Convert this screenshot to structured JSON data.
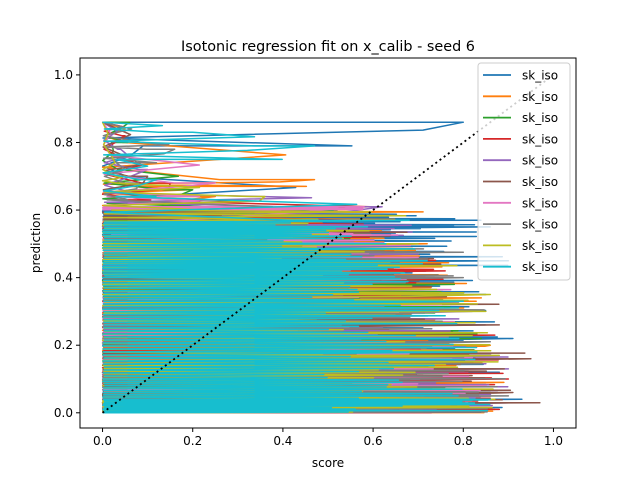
{
  "chart_data": {
    "type": "line",
    "title": "Isotonic regression fit on x_calib - seed 6",
    "xlabel": "score",
    "ylabel": "prediction",
    "xlim": [
      -0.05,
      1.05
    ],
    "ylim": [
      -0.045,
      1.05
    ],
    "xticks": [
      "0.0",
      "0.2",
      "0.4",
      "0.6",
      "0.8",
      "1.0"
    ],
    "yticks": [
      "0.0",
      "0.2",
      "0.4",
      "0.6",
      "0.8",
      "1.0"
    ],
    "grid": false,
    "legend_position": "top-right",
    "reference_line": {
      "x": [
        0,
        1
      ],
      "y": [
        0,
        1
      ],
      "style": "dotted",
      "color": "#000000"
    },
    "series": [
      {
        "name": "sk_iso",
        "color": "#1f77b4",
        "points": [
          [
            0.0,
            0.86
          ],
          [
            0.8,
            0.86
          ],
          [
            0.09,
            0.79
          ],
          [
            0.03,
            0.7
          ],
          [
            0.52,
            0.6
          ],
          [
            0.12,
            0.59
          ],
          [
            0.86,
            0.55
          ],
          [
            0.05,
            0.52
          ],
          [
            0.9,
            0.45
          ],
          [
            0.02,
            0.4
          ],
          [
            0.85,
            0.35
          ],
          [
            0.06,
            0.3
          ],
          [
            0.91,
            0.22
          ],
          [
            0.03,
            0.18
          ],
          [
            0.88,
            0.12
          ],
          [
            0.01,
            0.07
          ],
          [
            0.93,
            0.04
          ],
          [
            0.0,
            0.0
          ]
        ]
      },
      {
        "name": "sk_iso",
        "color": "#ff7f0e",
        "points": [
          [
            0.0,
            0.86
          ],
          [
            0.05,
            0.8
          ],
          [
            0.47,
            0.69
          ],
          [
            0.06,
            0.67
          ],
          [
            0.25,
            0.64
          ],
          [
            0.03,
            0.6
          ],
          [
            0.72,
            0.5
          ],
          [
            0.02,
            0.45
          ],
          [
            0.84,
            0.34
          ],
          [
            0.04,
            0.28
          ],
          [
            0.86,
            0.2
          ],
          [
            0.02,
            0.15
          ],
          [
            0.89,
            0.09
          ],
          [
            0.0,
            0.03
          ],
          [
            0.87,
            0.01
          ],
          [
            0.0,
            0.0
          ]
        ]
      },
      {
        "name": "sk_iso",
        "color": "#2ca02c",
        "points": [
          [
            0.0,
            0.86
          ],
          [
            0.06,
            0.86
          ],
          [
            0.02,
            0.8
          ],
          [
            0.04,
            0.72
          ],
          [
            0.2,
            0.66
          ],
          [
            0.01,
            0.62
          ],
          [
            0.55,
            0.55
          ],
          [
            0.03,
            0.48
          ],
          [
            0.78,
            0.38
          ],
          [
            0.01,
            0.3
          ],
          [
            0.84,
            0.22
          ],
          [
            0.03,
            0.15
          ],
          [
            0.86,
            0.06
          ],
          [
            0.0,
            0.0
          ]
        ]
      },
      {
        "name": "sk_iso",
        "color": "#d62728",
        "points": [
          [
            0.0,
            0.86
          ],
          [
            0.05,
            0.82
          ],
          [
            0.02,
            0.76
          ],
          [
            0.15,
            0.68
          ],
          [
            0.02,
            0.63
          ],
          [
            0.6,
            0.57
          ],
          [
            0.01,
            0.5
          ],
          [
            0.76,
            0.42
          ],
          [
            0.03,
            0.33
          ],
          [
            0.87,
            0.23
          ],
          [
            0.02,
            0.16
          ],
          [
            0.9,
            0.1
          ],
          [
            0.01,
            0.04
          ],
          [
            0.88,
            0.01
          ],
          [
            0.0,
            0.0
          ]
        ]
      },
      {
        "name": "sk_iso",
        "color": "#9467bd",
        "points": [
          [
            0.0,
            0.86
          ],
          [
            0.04,
            0.78
          ],
          [
            0.1,
            0.72
          ],
          [
            0.02,
            0.65
          ],
          [
            0.62,
            0.61
          ],
          [
            0.03,
            0.56
          ],
          [
            0.7,
            0.47
          ],
          [
            0.02,
            0.39
          ],
          [
            0.82,
            0.3
          ],
          [
            0.01,
            0.22
          ],
          [
            0.9,
            0.13
          ],
          [
            0.02,
            0.08
          ],
          [
            0.91,
            0.03
          ],
          [
            0.0,
            0.0
          ]
        ]
      },
      {
        "name": "sk_iso",
        "color": "#8c564b",
        "points": [
          [
            0.0,
            0.86
          ],
          [
            0.07,
            0.75
          ],
          [
            0.1,
            0.7
          ],
          [
            0.02,
            0.64
          ],
          [
            0.4,
            0.6
          ],
          [
            0.02,
            0.54
          ],
          [
            0.75,
            0.44
          ],
          [
            0.01,
            0.36
          ],
          [
            0.88,
            0.26
          ],
          [
            0.03,
            0.18
          ],
          [
            0.95,
            0.16
          ],
          [
            0.02,
            0.1
          ],
          [
            0.91,
            0.06
          ],
          [
            0.02,
            0.03
          ],
          [
            0.97,
            0.03
          ],
          [
            0.0,
            0.0
          ]
        ]
      },
      {
        "name": "sk_iso",
        "color": "#e377c2",
        "points": [
          [
            0.0,
            0.86
          ],
          [
            0.03,
            0.76
          ],
          [
            0.25,
            0.68
          ],
          [
            0.01,
            0.64
          ],
          [
            0.3,
            0.6
          ],
          [
            0.58,
            0.61
          ],
          [
            0.02,
            0.53
          ],
          [
            0.7,
            0.46
          ],
          [
            0.01,
            0.37
          ],
          [
            0.78,
            0.27
          ],
          [
            0.02,
            0.18
          ],
          [
            0.85,
            0.08
          ],
          [
            0.0,
            0.0
          ]
        ]
      },
      {
        "name": "sk_iso",
        "color": "#7f7f7f",
        "points": [
          [
            0.0,
            0.86
          ],
          [
            0.09,
            0.8
          ],
          [
            0.16,
            0.78
          ],
          [
            0.03,
            0.74
          ],
          [
            0.08,
            0.68
          ],
          [
            0.01,
            0.63
          ],
          [
            0.5,
            0.57
          ],
          [
            0.02,
            0.49
          ],
          [
            0.8,
            0.4
          ],
          [
            0.03,
            0.31
          ],
          [
            0.86,
            0.21
          ],
          [
            0.02,
            0.12
          ],
          [
            0.9,
            0.05
          ],
          [
            0.0,
            0.0
          ]
        ]
      },
      {
        "name": "sk_iso",
        "color": "#bcbd22",
        "points": [
          [
            0.0,
            0.86
          ],
          [
            0.02,
            0.76
          ],
          [
            0.05,
            0.7
          ],
          [
            0.03,
            0.68
          ],
          [
            0.36,
            0.64
          ],
          [
            0.02,
            0.6
          ],
          [
            0.7,
            0.5
          ],
          [
            0.03,
            0.44
          ],
          [
            0.86,
            0.35
          ],
          [
            0.04,
            0.25
          ],
          [
            0.88,
            0.17
          ],
          [
            0.02,
            0.1
          ],
          [
            0.87,
            0.04
          ],
          [
            0.0,
            0.0
          ]
        ]
      },
      {
        "name": "sk_iso",
        "color": "#17becf",
        "points": [
          [
            0.0,
            0.86
          ],
          [
            0.2,
            0.83
          ],
          [
            0.47,
            0.79
          ],
          [
            0.03,
            0.75
          ],
          [
            0.12,
            0.69
          ],
          [
            0.03,
            0.64
          ],
          [
            0.68,
            0.57
          ],
          [
            0.02,
            0.52
          ],
          [
            0.72,
            0.45
          ],
          [
            0.01,
            0.4
          ],
          [
            0.8,
            0.33
          ],
          [
            0.02,
            0.26
          ],
          [
            0.83,
            0.18
          ],
          [
            0.01,
            0.1
          ],
          [
            0.86,
            0.04
          ],
          [
            0.0,
            0.0
          ]
        ]
      }
    ]
  }
}
